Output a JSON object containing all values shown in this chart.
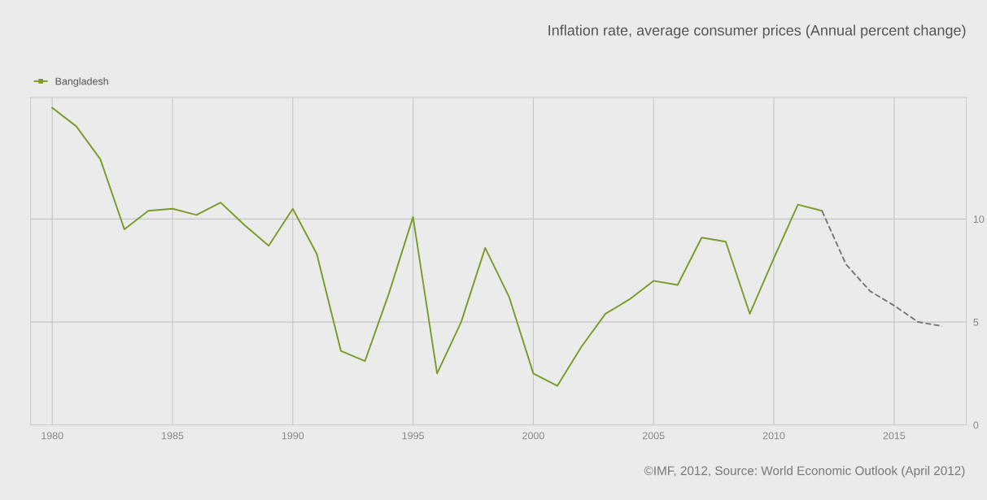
{
  "chart_data": {
    "type": "line",
    "title": "Inflation rate, average consumer prices (Annual percent change)",
    "annotations": [
      "©IMF, 2012, Source: World Economic Outlook (April 2012)"
    ],
    "series": [
      {
        "name": "Bangladesh",
        "color": "#7d9a2c",
        "line_style": "solid",
        "x": [
          1980,
          1981,
          1982,
          1983,
          1984,
          1985,
          1986,
          1987,
          1988,
          1989,
          1990,
          1991,
          1992,
          1993,
          1994,
          1995,
          1996,
          1997,
          1998,
          1999,
          2000,
          2001,
          2002,
          2003,
          2004,
          2005,
          2006,
          2007,
          2008,
          2009,
          2010,
          2011,
          2012
        ],
        "values": [
          15.4,
          14.5,
          12.9,
          9.5,
          10.4,
          10.5,
          10.2,
          10.8,
          9.7,
          8.7,
          10.5,
          8.3,
          3.6,
          3.1,
          6.4,
          10.1,
          2.5,
          5.0,
          8.6,
          6.2,
          2.5,
          1.9,
          3.8,
          5.4,
          6.1,
          7.0,
          6.8,
          9.1,
          8.9,
          5.4,
          8.1,
          10.7,
          10.4
        ]
      },
      {
        "color": "#777777",
        "line_style": "dashed",
        "x": [
          2012,
          2013,
          2014,
          2015,
          2016,
          2017
        ],
        "values": [
          10.4,
          7.8,
          6.5,
          5.8,
          5.0,
          4.8
        ]
      }
    ],
    "xlim": [
      1979.1,
      2018
    ],
    "xticks": [
      1980,
      1985,
      1990,
      1995,
      2000,
      2005,
      2010,
      2015
    ],
    "ylim": [
      0,
      15.9
    ],
    "yticks": [
      0,
      5,
      10
    ],
    "grid": true,
    "legend": "top left",
    "marker": "none"
  }
}
